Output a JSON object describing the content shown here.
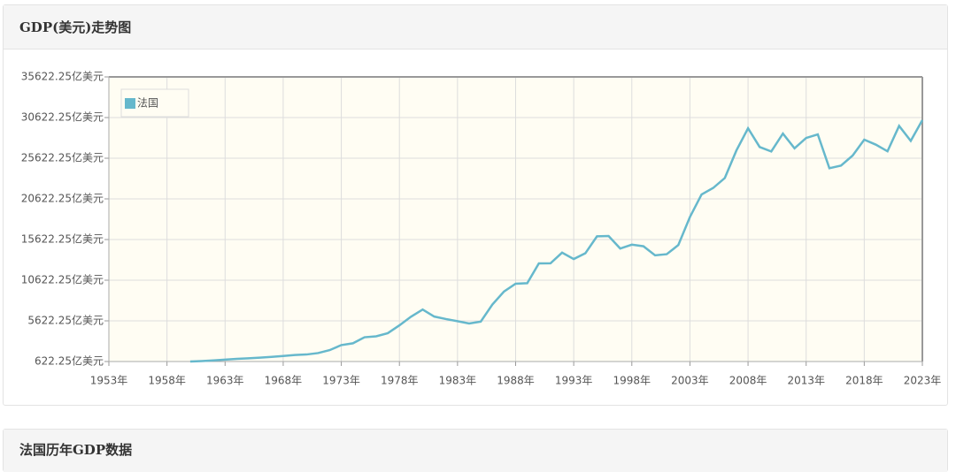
{
  "panels": [
    {
      "title": "GDP(美元)走势图"
    },
    {
      "title": "法国历年GDP数据"
    }
  ],
  "chart_data": {
    "type": "line",
    "x": [
      1960,
      1961,
      1962,
      1963,
      1964,
      1965,
      1966,
      1967,
      1968,
      1969,
      1970,
      1971,
      1972,
      1973,
      1974,
      1975,
      1976,
      1977,
      1978,
      1979,
      1980,
      1981,
      1982,
      1983,
      1984,
      1985,
      1986,
      1987,
      1988,
      1989,
      1990,
      1991,
      1992,
      1993,
      1994,
      1995,
      1996,
      1997,
      1998,
      1999,
      2000,
      2001,
      2002,
      2003,
      2004,
      2005,
      2006,
      2007,
      2008,
      2009,
      2010,
      2011,
      2012,
      2013,
      2014,
      2015,
      2016,
      2017,
      2018,
      2019,
      2020,
      2021,
      2022,
      2023
    ],
    "series": [
      {
        "name": "法国",
        "color": "#66b8cc",
        "values": [
          623,
          679,
          756,
          850,
          944,
          1016,
          1100,
          1189,
          1298,
          1419,
          1486,
          1661,
          2023,
          2644,
          2862,
          3607,
          3723,
          4107,
          5070,
          6135,
          7011,
          6150,
          5844,
          5583,
          5302,
          5535,
          7630,
          9226,
          10191,
          10257,
          12693,
          12699,
          14014,
          13227,
          13935,
          16012,
          16052,
          14521,
          14990,
          14793,
          13682,
          13821,
          14942,
          18397,
          21159,
          21965,
          23187,
          26578,
          29302,
          27002,
          26452,
          28653,
          26838,
          28111,
          28557,
          24393,
          24716,
          25951,
          27903,
          27288,
          26475,
          29595,
          27757,
          30309
        ]
      }
    ],
    "xlim": [
      1953,
      2023
    ],
    "xticks": [
      {
        "value": 1953,
        "label": "1953年"
      },
      {
        "value": 1958,
        "label": "1958年"
      },
      {
        "value": 1963,
        "label": "1963年"
      },
      {
        "value": 1968,
        "label": "1968年"
      },
      {
        "value": 1973,
        "label": "1973年"
      },
      {
        "value": 1978,
        "label": "1978年"
      },
      {
        "value": 1983,
        "label": "1983年"
      },
      {
        "value": 1988,
        "label": "1988年"
      },
      {
        "value": 1993,
        "label": "1993年"
      },
      {
        "value": 1998,
        "label": "1998年"
      },
      {
        "value": 2003,
        "label": "2003年"
      },
      {
        "value": 2008,
        "label": "2008年"
      },
      {
        "value": 2013,
        "label": "2013年"
      },
      {
        "value": 2018,
        "label": "2018年"
      },
      {
        "value": 2023,
        "label": "2023年"
      }
    ],
    "ylim": [
      622.25,
      35622.25
    ],
    "yticks": [
      {
        "value": 622.25,
        "label": "622.25亿美元"
      },
      {
        "value": 5622.25,
        "label": "5622.25亿美元"
      },
      {
        "value": 10622.25,
        "label": "10622.25亿美元"
      },
      {
        "value": 15622.25,
        "label": "15622.25亿美元"
      },
      {
        "value": 20622.25,
        "label": "20622.25亿美元"
      },
      {
        "value": 25622.25,
        "label": "25622.25亿美元"
      },
      {
        "value": 30622.25,
        "label": "30622.25亿美元"
      },
      {
        "value": 35622.25,
        "label": "35622.25亿美元"
      }
    ],
    "grid": true,
    "legend": "top-left"
  }
}
